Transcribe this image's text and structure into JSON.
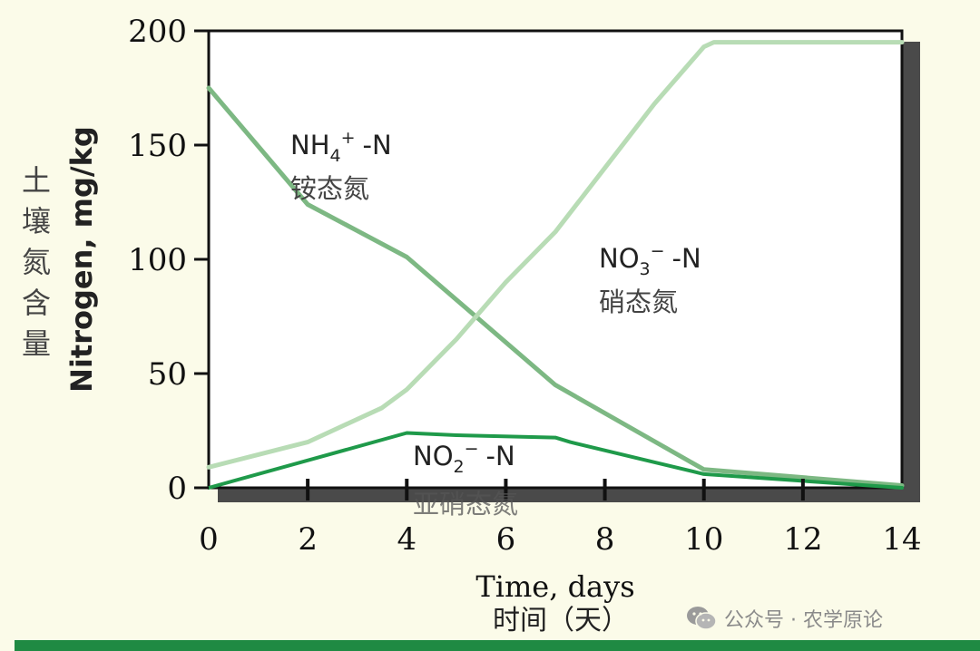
{
  "chart_data": {
    "type": "line",
    "title": "",
    "xlabel": "Time, days",
    "xlabel_cn": "时间（天）",
    "ylabel": "Nitrogen, mg/kg",
    "ylabel_cn": [
      "土",
      "壤",
      "氮",
      "含",
      "量"
    ],
    "xlim": [
      0,
      14
    ],
    "ylim": [
      0,
      200
    ],
    "xticks": [
      0,
      2,
      4,
      6,
      8,
      10,
      12,
      14
    ],
    "yticks": [
      0,
      50,
      100,
      150,
      200
    ],
    "grid": false,
    "series": [
      {
        "name": "NH4+ -N",
        "name_cn": "铵态氮",
        "color": "#7db883",
        "x": [
          0,
          2,
          4,
          7,
          10,
          14
        ],
        "y": [
          175,
          124,
          101,
          45,
          8,
          1
        ]
      },
      {
        "name": "NO3- -N",
        "name_cn": "硝态氮",
        "color": "#b8dcb5",
        "x": [
          0,
          2,
          3.5,
          4,
          5,
          6,
          7,
          8,
          9,
          10,
          10.2,
          14
        ],
        "y": [
          9,
          20,
          35,
          43,
          65,
          90,
          112,
          140,
          168,
          193,
          195,
          195
        ]
      },
      {
        "name": "NO2- -N",
        "name_cn": "亚硝态氮",
        "color": "#1f9a4a",
        "x": [
          0,
          4,
          5,
          7,
          7.3,
          10,
          14
        ],
        "y": [
          0,
          24,
          23,
          22,
          20,
          6,
          0
        ]
      }
    ],
    "annotations": {
      "nh4_formula": "NH",
      "nh4_sub": "4",
      "nh4_sup": "+",
      "nh4_tail": "-N",
      "nh4_cn": "铵态氮",
      "no3_formula": "NO",
      "no3_sub": "3",
      "no3_sup": "−",
      "no3_tail": "-N",
      "no3_cn": "硝态氮",
      "no2_formula": "NO",
      "no2_sub": "2",
      "no2_sup": "−",
      "no2_tail": "-N",
      "no2_cn": "亚硝态氮"
    }
  },
  "watermark": {
    "icon": "wechat-icon",
    "text": "公众号 · 农学原论"
  },
  "colors": {
    "background": "#fbfbe9",
    "plot_background": "#ffffff",
    "shadow": "#4a4a4a",
    "axis": "#111111",
    "bottom_bar": "#1f8a43"
  }
}
